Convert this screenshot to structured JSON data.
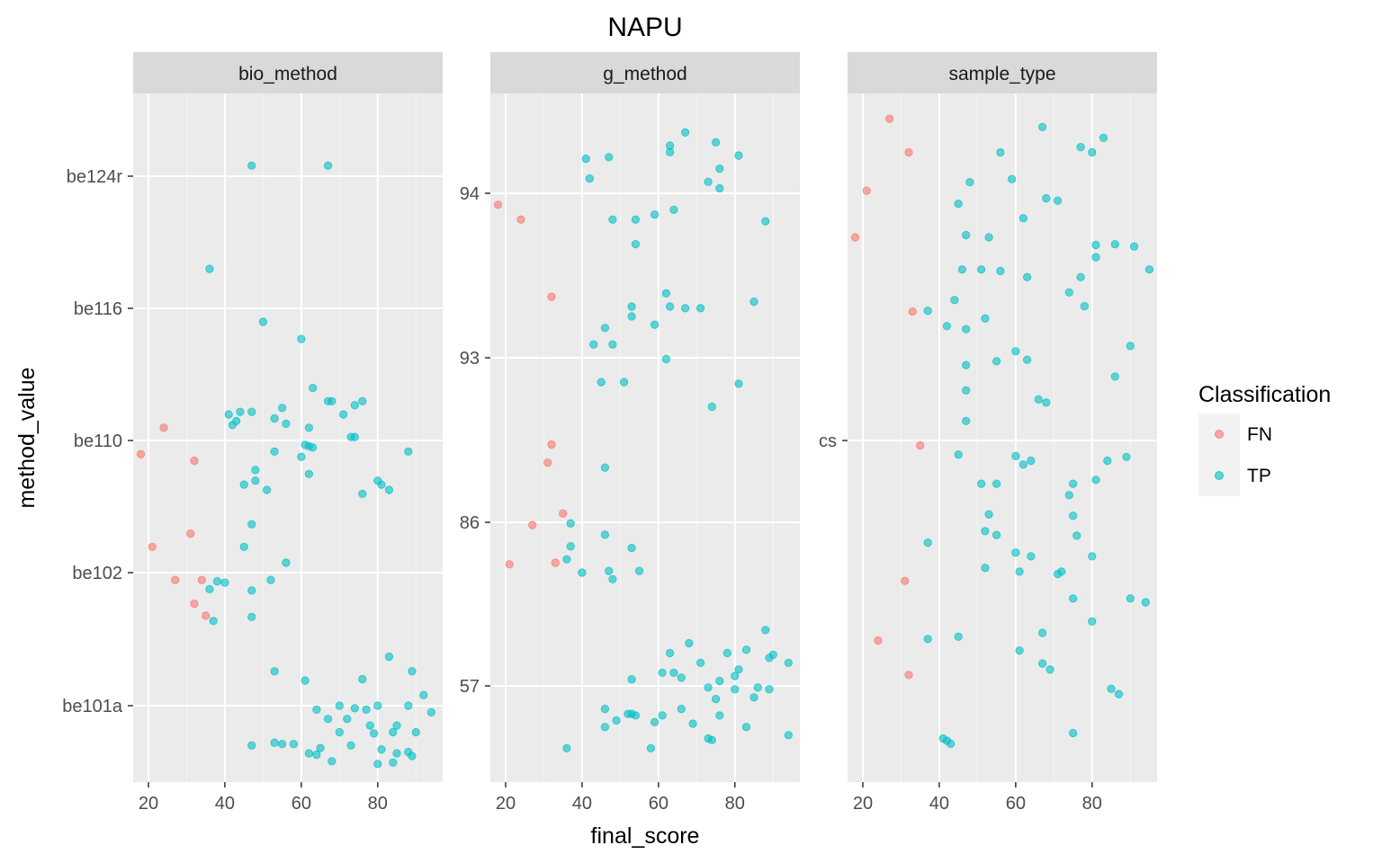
{
  "chart_data": {
    "type": "scatter",
    "title": "NAPU",
    "xlabel": "final_score",
    "ylabel": "method_value",
    "xlim": [
      16,
      97
    ],
    "xticks": [
      20,
      40,
      60,
      80
    ],
    "legend": {
      "title": "Classification",
      "position": "right",
      "entries": [
        {
          "name": "FN",
          "color": "#F8766D"
        },
        {
          "name": "TP",
          "color": "#00BFC4"
        }
      ]
    },
    "colors": {
      "FN": "#F8766D",
      "TP": "#00BFC4",
      "panel_bg": "#EBEBEB",
      "strip_bg": "#D9D9D9",
      "grid": "#FFFFFF"
    },
    "panels": [
      {
        "strip": "bio_method",
        "y_categories": [
          "be101a",
          "be102",
          "be110",
          "be116",
          "be124r"
        ],
        "points": {
          "FN": [
            [
              18,
              2.9
            ],
            [
              24,
              3.1
            ],
            [
              32,
              2.85
            ],
            [
              21,
              2.2
            ],
            [
              31,
              2.3
            ],
            [
              27,
              1.95
            ],
            [
              34,
              1.95
            ],
            [
              32,
              1.77
            ],
            [
              35,
              1.68
            ]
          ],
          "TP": [
            [
              47,
              5.08
            ],
            [
              67,
              5.08
            ],
            [
              36,
              4.3
            ],
            [
              50,
              3.9
            ],
            [
              60,
              3.77
            ],
            [
              63,
              3.4
            ],
            [
              68,
              3.3
            ],
            [
              67,
              3.3
            ],
            [
              76,
              3.3
            ],
            [
              74,
              3.27
            ],
            [
              41,
              3.2
            ],
            [
              44,
              3.22
            ],
            [
              47,
              3.22
            ],
            [
              55,
              3.25
            ],
            [
              53,
              3.17
            ],
            [
              42,
              3.12
            ],
            [
              43,
              3.15
            ],
            [
              56,
              3.13
            ],
            [
              62,
              3.1
            ],
            [
              71,
              3.2
            ],
            [
              61,
              2.97
            ],
            [
              62,
              2.96
            ],
            [
              63,
              2.95
            ],
            [
              73,
              3.03
            ],
            [
              74,
              3.03
            ],
            [
              53,
              2.92
            ],
            [
              88,
              2.92
            ],
            [
              60,
              2.88
            ],
            [
              48,
              2.78
            ],
            [
              62,
              2.75
            ],
            [
              45,
              2.67
            ],
            [
              48,
              2.7
            ],
            [
              51,
              2.63
            ],
            [
              76,
              2.6
            ],
            [
              80,
              2.7
            ],
            [
              81,
              2.67
            ],
            [
              83,
              2.63
            ],
            [
              47,
              2.37
            ],
            [
              45,
              2.2
            ],
            [
              56,
              2.08
            ],
            [
              38,
              1.94
            ],
            [
              40,
              1.93
            ],
            [
              36,
              1.88
            ],
            [
              52,
              1.95
            ],
            [
              47,
              1.87
            ],
            [
              47,
              1.67
            ],
            [
              37,
              1.64
            ],
            [
              53,
              1.26
            ],
            [
              61,
              1.19
            ],
            [
              76,
              1.2
            ],
            [
              83,
              1.37
            ],
            [
              89,
              1.26
            ],
            [
              77,
              0.97
            ],
            [
              70,
              1.0
            ],
            [
              74,
              0.98
            ],
            [
              80,
              1.0
            ],
            [
              88,
              1.0
            ],
            [
              92,
              1.08
            ],
            [
              94,
              0.95
            ],
            [
              64,
              0.97
            ],
            [
              67,
              0.9
            ],
            [
              72,
              0.9
            ],
            [
              78,
              0.85
            ],
            [
              85,
              0.85
            ],
            [
              79,
              0.79
            ],
            [
              70,
              0.8
            ],
            [
              84,
              0.8
            ],
            [
              90,
              0.8
            ],
            [
              47,
              0.7
            ],
            [
              53,
              0.72
            ],
            [
              55,
              0.71
            ],
            [
              58,
              0.71
            ],
            [
              62,
              0.64
            ],
            [
              64,
              0.63
            ],
            [
              65,
              0.68
            ],
            [
              68,
              0.58
            ],
            [
              73,
              0.7
            ],
            [
              81,
              0.67
            ],
            [
              85,
              0.64
            ],
            [
              89,
              0.62
            ],
            [
              88,
              0.65
            ],
            [
              80,
              0.56
            ],
            [
              84,
              0.57
            ]
          ]
        }
      },
      {
        "strip": "g_method",
        "y_categories": [
          "57",
          "86",
          "93",
          "94"
        ],
        "points": {
          "FN": [
            [
              18,
              3.93
            ],
            [
              24,
              3.84
            ],
            [
              32,
              3.37
            ],
            [
              32,
              2.47
            ],
            [
              31,
              2.36
            ],
            [
              27,
              1.98
            ],
            [
              35,
              2.05
            ],
            [
              21,
              1.74
            ],
            [
              33,
              1.75
            ]
          ],
          "TP": [
            [
              41,
              4.21
            ],
            [
              47,
              4.22
            ],
            [
              42,
              4.09
            ],
            [
              67,
              4.37
            ],
            [
              63,
              4.29
            ],
            [
              63,
              4.25
            ],
            [
              75,
              4.31
            ],
            [
              81,
              4.23
            ],
            [
              76,
              4.15
            ],
            [
              73,
              4.07
            ],
            [
              76,
              4.03
            ],
            [
              48,
              3.84
            ],
            [
              54,
              3.84
            ],
            [
              59,
              3.87
            ],
            [
              64,
              3.9
            ],
            [
              54,
              3.69
            ],
            [
              62,
              3.39
            ],
            [
              63,
              3.31
            ],
            [
              67,
              3.3
            ],
            [
              71,
              3.3
            ],
            [
              53,
              3.31
            ],
            [
              85,
              3.34
            ],
            [
              88,
              3.83
            ],
            [
              53,
              3.25
            ],
            [
              46,
              3.18
            ],
            [
              59,
              3.2
            ],
            [
              43,
              3.08
            ],
            [
              48,
              3.08
            ],
            [
              62,
              2.99
            ],
            [
              45,
              2.85
            ],
            [
              51,
              2.85
            ],
            [
              81,
              2.84
            ],
            [
              74,
              2.7
            ],
            [
              46,
              2.33
            ],
            [
              37,
              1.99
            ],
            [
              46,
              1.92
            ],
            [
              37,
              1.85
            ],
            [
              53,
              1.84
            ],
            [
              36,
              1.77
            ],
            [
              40,
              1.69
            ],
            [
              47,
              1.7
            ],
            [
              48,
              1.65
            ],
            [
              55,
              1.7
            ],
            [
              88,
              1.34
            ],
            [
              68,
              1.26
            ],
            [
              63,
              1.2
            ],
            [
              78,
              1.2
            ],
            [
              83,
              1.22
            ],
            [
              71,
              1.14
            ],
            [
              90,
              1.19
            ],
            [
              89,
              1.17
            ],
            [
              94,
              1.14
            ],
            [
              61,
              1.08
            ],
            [
              64,
              1.08
            ],
            [
              66,
              1.05
            ],
            [
              76,
              1.03
            ],
            [
              80,
              1.06
            ],
            [
              81,
              1.1
            ],
            [
              53,
              1.04
            ],
            [
              73,
              0.99
            ],
            [
              80,
              0.98
            ],
            [
              86,
              0.99
            ],
            [
              89,
              0.98
            ],
            [
              75,
              0.92
            ],
            [
              85,
              0.93
            ],
            [
              46,
              0.86
            ],
            [
              66,
              0.86
            ],
            [
              52,
              0.83
            ],
            [
              49,
              0.79
            ],
            [
              53,
              0.83
            ],
            [
              61,
              0.82
            ],
            [
              54,
              0.82
            ],
            [
              76,
              0.82
            ],
            [
              59,
              0.78
            ],
            [
              46,
              0.75
            ],
            [
              69,
              0.77
            ],
            [
              83,
              0.75
            ],
            [
              73,
              0.68
            ],
            [
              74,
              0.67
            ],
            [
              94,
              0.7
            ],
            [
              36,
              0.62
            ],
            [
              58,
              0.62
            ]
          ]
        }
      },
      {
        "strip": "sample_type",
        "y_categories": [
          "cs"
        ],
        "points": {
          "FN": [
            [
              27,
              1.417
            ],
            [
              32,
              1.373
            ],
            [
              21,
              1.323
            ],
            [
              18,
              1.262
            ],
            [
              33,
              1.165
            ],
            [
              35,
              0.99
            ],
            [
              31,
              0.813
            ],
            [
              24,
              0.735
            ],
            [
              32,
              0.69
            ]
          ],
          "TP": [
            [
              67,
              1.406
            ],
            [
              83,
              1.392
            ],
            [
              77,
              1.38
            ],
            [
              80,
              1.373
            ],
            [
              56,
              1.373
            ],
            [
              59,
              1.338
            ],
            [
              48,
              1.334
            ],
            [
              68,
              1.313
            ],
            [
              71,
              1.31
            ],
            [
              45,
              1.306
            ],
            [
              62,
              1.287
            ],
            [
              47,
              1.265
            ],
            [
              53,
              1.262
            ],
            [
              81,
              1.252
            ],
            [
              86,
              1.253
            ],
            [
              91,
              1.25
            ],
            [
              81,
              1.236
            ],
            [
              95,
              1.22
            ],
            [
              46,
              1.22
            ],
            [
              51,
              1.22
            ],
            [
              56,
              1.218
            ],
            [
              63,
              1.21
            ],
            [
              77,
              1.21
            ],
            [
              74,
              1.19
            ],
            [
              44,
              1.18
            ],
            [
              78,
              1.172
            ],
            [
              37,
              1.166
            ],
            [
              42,
              1.146
            ],
            [
              47,
              1.142
            ],
            [
              52,
              1.156
            ],
            [
              60,
              1.113
            ],
            [
              90,
              1.12
            ],
            [
              47,
              1.095
            ],
            [
              55,
              1.1
            ],
            [
              63,
              1.102
            ],
            [
              86,
              1.08
            ],
            [
              47,
              1.062
            ],
            [
              66,
              1.05
            ],
            [
              68,
              1.046
            ],
            [
              47,
              1.022
            ],
            [
              45,
              0.978
            ],
            [
              60,
              0.976
            ],
            [
              62,
              0.965
            ],
            [
              64,
              0.97
            ],
            [
              84,
              0.97
            ],
            [
              89,
              0.975
            ],
            [
              51,
              0.94
            ],
            [
              55,
              0.94
            ],
            [
              75,
              0.94
            ],
            [
              81,
              0.945
            ],
            [
              74,
              0.925
            ],
            [
              53,
              0.9
            ],
            [
              75,
              0.898
            ],
            [
              52,
              0.878
            ],
            [
              55,
              0.873
            ],
            [
              76,
              0.872
            ],
            [
              37,
              0.863
            ],
            [
              60,
              0.85
            ],
            [
              64,
              0.845
            ],
            [
              80,
              0.845
            ],
            [
              52,
              0.83
            ],
            [
              61,
              0.825
            ],
            [
              71,
              0.822
            ],
            [
              72,
              0.825
            ],
            [
              75,
              0.79
            ],
            [
              90,
              0.79
            ],
            [
              94,
              0.785
            ],
            [
              80,
              0.76
            ],
            [
              67,
              0.745
            ],
            [
              37,
              0.737
            ],
            [
              45,
              0.74
            ],
            [
              61,
              0.722
            ],
            [
              67,
              0.705
            ],
            [
              69,
              0.697
            ],
            [
              85,
              0.672
            ],
            [
              87,
              0.665
            ],
            [
              75,
              0.614
            ],
            [
              41,
              0.607
            ],
            [
              42,
              0.604
            ],
            [
              43,
              0.6
            ]
          ]
        }
      }
    ],
    "grid": true
  }
}
